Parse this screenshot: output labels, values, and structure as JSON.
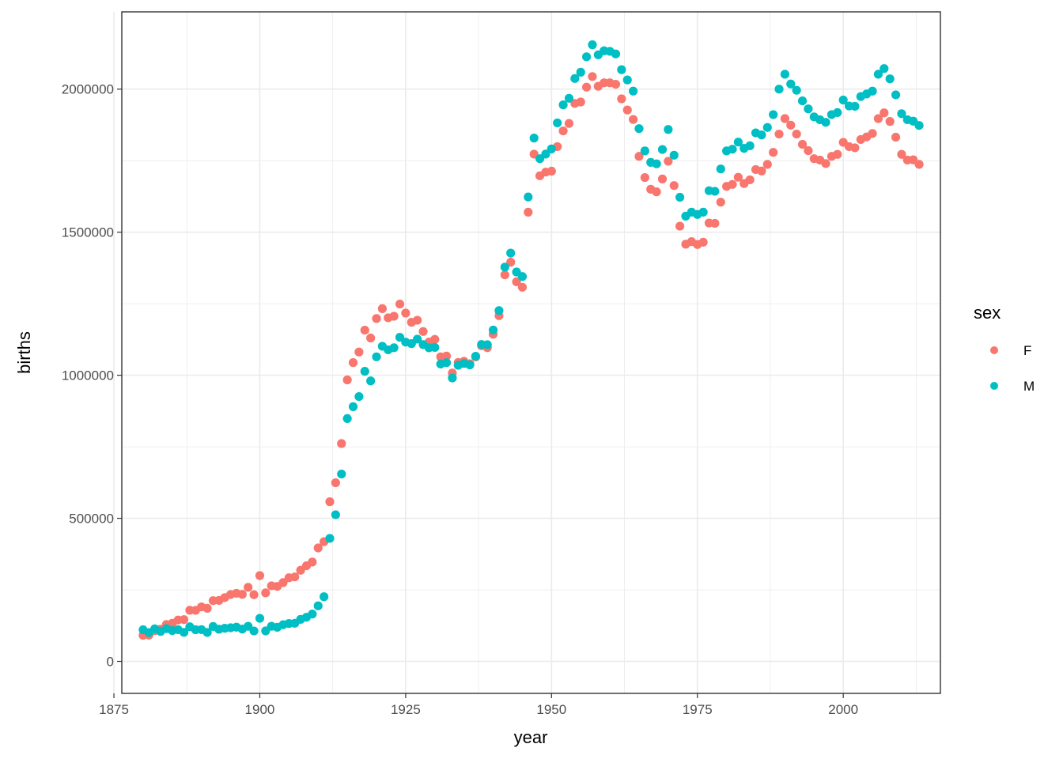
{
  "chart_data": {
    "type": "scatter",
    "title": "",
    "xlabel": "year",
    "ylabel": "births",
    "xlim": [
      1876.35,
      2016.65
    ],
    "ylim": [
      -111848,
      2270040
    ],
    "x_ticks": [
      1875,
      1900,
      1925,
      1950,
      1975,
      2000
    ],
    "x_minor_ticks": [
      1887.5,
      1912.5,
      1937.5,
      1962.5,
      1987.5,
      2012.5
    ],
    "y_ticks": [
      0,
      500000,
      1000000,
      1500000,
      2000000
    ],
    "y_tick_labels": [
      "0",
      "500000",
      "1000000",
      "1500000",
      "2000000"
    ],
    "y_minor_ticks": [
      250000,
      750000,
      1250000,
      1750000
    ],
    "grid": true,
    "legend": {
      "title": "sex",
      "placement": "right"
    },
    "series": [
      {
        "name": "F",
        "color": "#F8766D",
        "x": [
          1880,
          1881,
          1882,
          1883,
          1884,
          1885,
          1886,
          1887,
          1888,
          1889,
          1890,
          1891,
          1892,
          1893,
          1894,
          1895,
          1896,
          1897,
          1898,
          1899,
          1900,
          1901,
          1902,
          1903,
          1904,
          1905,
          1906,
          1907,
          1908,
          1909,
          1910,
          1911,
          1912,
          1913,
          1914,
          1915,
          1916,
          1917,
          1918,
          1919,
          1920,
          1921,
          1922,
          1923,
          1924,
          1925,
          1926,
          1927,
          1928,
          1929,
          1930,
          1931,
          1932,
          1933,
          1934,
          1935,
          1936,
          1937,
          1938,
          1939,
          1940,
          1941,
          1942,
          1943,
          1944,
          1945,
          1946,
          1947,
          1948,
          1949,
          1950,
          1951,
          1952,
          1953,
          1954,
          1955,
          1956,
          1957,
          1958,
          1959,
          1960,
          1961,
          1962,
          1963,
          1964,
          1965,
          1966,
          1967,
          1968,
          1969,
          1970,
          1971,
          1972,
          1973,
          1974,
          1975,
          1976,
          1977,
          1978,
          1979,
          1980,
          1981,
          1982,
          1983,
          1984,
          1985,
          1986,
          1987,
          1988,
          1989,
          1990,
          1991,
          1992,
          1993,
          1994,
          1995,
          1996,
          1997,
          1998,
          1999,
          2000,
          2001,
          2002,
          2003,
          2004,
          2005,
          2006,
          2007,
          2008,
          2009,
          2010,
          2011,
          2012,
          2013
        ],
        "y": [
          90992,
          91953,
          107847,
          112319,
          129019,
          133055,
          144533,
          145981,
          178622,
          178366,
          190377,
          185482,
          212346,
          212906,
          222922,
          233630,
          237920,
          234202,
          258770,
          233023,
          299823,
          239348,
          264077,
          261974,
          275371,
          292213,
          295262,
          318558,
          334279,
          347192,
          396505,
          418266,
          557939,
          624323,
          761361,
          983823,
          1044249,
          1081194,
          1157585,
          1130149,
          1198214,
          1232845,
          1200796,
          1206239,
          1248821,
          1217217,
          1185078,
          1192207,
          1152836,
          1116284,
          1125521,
          1064236,
          1066930,
          1007816,
          1044643,
          1048617,
          1040101,
          1063987,
          1103223,
          1096359,
          1143383,
          1208130,
          1350839,
          1395124,
          1326659,
          1307645,
          1569849,
          1772733,
          1697156,
          1710000,
          1713183,
          1799000,
          1854000,
          1880000,
          1950000,
          1955000,
          2007000,
          2044000,
          2010000,
          2022000,
          2022000,
          2017000,
          1966000,
          1927000,
          1894000,
          1765000,
          1691000,
          1650000,
          1641000,
          1686000,
          1748000,
          1663000,
          1521000,
          1458000,
          1467000,
          1457000,
          1465000,
          1532000,
          1531000,
          1605000,
          1660000,
          1667000,
          1692000,
          1670000,
          1683000,
          1719000,
          1714000,
          1737000,
          1779000,
          1843000,
          1897000,
          1874000,
          1843000,
          1807000,
          1785000,
          1757000,
          1752000,
          1740000,
          1765000,
          1772000,
          1814000,
          1799000,
          1795000,
          1824000,
          1833000,
          1845000,
          1897000,
          1917000,
          1887000,
          1832000,
          1772000,
          1752000,
          1753000,
          1737000
        ]
      },
      {
        "name": "M",
        "color": "#00BFC4",
        "x": [
          1880,
          1881,
          1882,
          1883,
          1884,
          1885,
          1886,
          1887,
          1888,
          1889,
          1890,
          1891,
          1892,
          1893,
          1894,
          1895,
          1896,
          1897,
          1898,
          1899,
          1900,
          1901,
          1902,
          1903,
          1904,
          1905,
          1906,
          1907,
          1908,
          1909,
          1910,
          1911,
          1912,
          1913,
          1914,
          1915,
          1916,
          1917,
          1918,
          1919,
          1920,
          1921,
          1922,
          1923,
          1924,
          1925,
          1926,
          1927,
          1928,
          1929,
          1930,
          1931,
          1932,
          1933,
          1934,
          1935,
          1936,
          1937,
          1938,
          1939,
          1940,
          1941,
          1942,
          1943,
          1944,
          1945,
          1946,
          1947,
          1948,
          1949,
          1950,
          1951,
          1952,
          1953,
          1954,
          1955,
          1956,
          1957,
          1958,
          1959,
          1960,
          1961,
          1962,
          1963,
          1964,
          1965,
          1966,
          1967,
          1968,
          1969,
          1970,
          1971,
          1972,
          1973,
          1974,
          1975,
          1976,
          1977,
          1978,
          1979,
          1980,
          1981,
          1982,
          1983,
          1984,
          1985,
          1986,
          1987,
          1988,
          1989,
          1990,
          1991,
          1992,
          1993,
          1994,
          1995,
          1996,
          1997,
          1998,
          1999,
          2000,
          2001,
          2002,
          2003,
          2004,
          2005,
          2006,
          2007,
          2008,
          2009,
          2010,
          2011,
          2012,
          2013
        ],
        "y": [
          110491,
          100743,
          113686,
          104627,
          114442,
          107799,
          110784,
          101415,
          120851,
          110580,
          111025,
          101196,
          122037,
          112317,
          115772,
          117398,
          119570,
          112758,
          122693,
          106212,
          150499,
          106471,
          122660,
          119233,
          128125,
          132319,
          133159,
          146838,
          154339,
          165426,
          194198,
          225964,
          429952,
          512482,
          654746,
          848647,
          890142,
          925513,
          1013720,
          980215,
          1064468,
          1101374,
          1088949,
          1096227,
          1132671,
          1115798,
          1110440,
          1126259,
          1107113,
          1096025,
          1097220,
          1039102,
          1043990,
          990600,
          1034940,
          1041180,
          1036270,
          1066520,
          1107600,
          1106700,
          1158000,
          1226000,
          1378000,
          1427000,
          1361000,
          1345000,
          1623000,
          1829000,
          1757000,
          1773000,
          1791000,
          1882000,
          1945000,
          1968000,
          2037000,
          2059000,
          2113000,
          2155000,
          2120000,
          2134000,
          2132000,
          2123000,
          2068000,
          2032000,
          1993000,
          1862000,
          1784000,
          1744000,
          1739000,
          1789000,
          1859000,
          1769000,
          1622000,
          1556000,
          1570000,
          1562000,
          1570000,
          1645000,
          1643000,
          1721000,
          1784000,
          1790000,
          1815000,
          1793000,
          1802000,
          1847000,
          1840000,
          1866000,
          1911000,
          2000000,
          2052000,
          2018000,
          1996000,
          1959000,
          1931000,
          1903000,
          1893000,
          1884000,
          1911000,
          1918000,
          1962000,
          1941000,
          1940000,
          1974000,
          1983000,
          1993000,
          2052000,
          2072000,
          2036000,
          1980000,
          1914000,
          1893000,
          1888000,
          1873000
        ]
      }
    ]
  }
}
